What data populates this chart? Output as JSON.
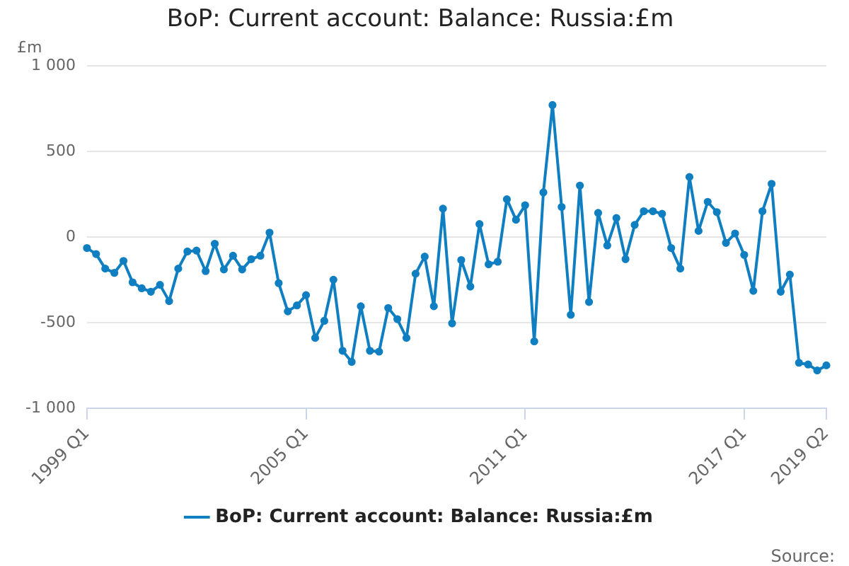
{
  "chart_data": {
    "type": "line",
    "title": "BoP: Current account: Balance: Russia:£m",
    "ylabel": "£m",
    "categories": [
      "1999 Q1",
      null,
      null,
      null,
      null,
      null,
      null,
      null,
      null,
      null,
      null,
      null,
      null,
      null,
      null,
      null,
      null,
      null,
      null,
      null,
      null,
      null,
      null,
      null,
      "2005 Q1",
      null,
      null,
      null,
      null,
      null,
      null,
      null,
      null,
      null,
      null,
      null,
      null,
      null,
      null,
      null,
      null,
      null,
      null,
      null,
      null,
      null,
      null,
      null,
      "2011 Q1",
      null,
      null,
      null,
      null,
      null,
      null,
      null,
      null,
      null,
      null,
      null,
      null,
      null,
      null,
      null,
      null,
      null,
      null,
      null,
      null,
      null,
      null,
      null,
      "2017 Q1",
      null,
      null,
      null,
      null,
      null,
      null,
      null,
      null,
      "2019 Q2"
    ],
    "series": [
      {
        "name": "BoP: Current account: Balance: Russia:£m",
        "color": "#0f7fc1",
        "values": [
          -65,
          -100,
          -185,
          -210,
          -140,
          -265,
          -300,
          -320,
          -280,
          -375,
          -185,
          -85,
          -80,
          -200,
          -40,
          -190,
          -110,
          -190,
          -130,
          -110,
          25,
          -270,
          -435,
          -400,
          -340,
          -590,
          -490,
          -250,
          -665,
          -730,
          -405,
          -665,
          -670,
          -415,
          -480,
          -590,
          -215,
          -115,
          -405,
          165,
          -505,
          -135,
          -290,
          75,
          -160,
          -145,
          220,
          100,
          185,
          -610,
          260,
          770,
          175,
          -455,
          300,
          -380,
          140,
          -50,
          110,
          -130,
          70,
          150,
          150,
          135,
          -65,
          -185,
          350,
          35,
          205,
          145,
          -35,
          20,
          -105,
          -315,
          150,
          310,
          -320,
          -220,
          -735,
          -745,
          -780,
          -750
        ]
      }
    ],
    "ylim": [
      -1000,
      1000
    ],
    "yticks": [
      {
        "value": -1000,
        "label": "-1 000"
      },
      {
        "value": -500,
        "label": "-500"
      },
      {
        "value": 0,
        "label": "0"
      },
      {
        "value": 500,
        "label": "500"
      },
      {
        "value": 1000,
        "label": "1 000"
      }
    ],
    "grid": "y",
    "legend": "bottom",
    "marker": "circle",
    "line_style": "solid",
    "annotations": [
      "Source:"
    ]
  }
}
